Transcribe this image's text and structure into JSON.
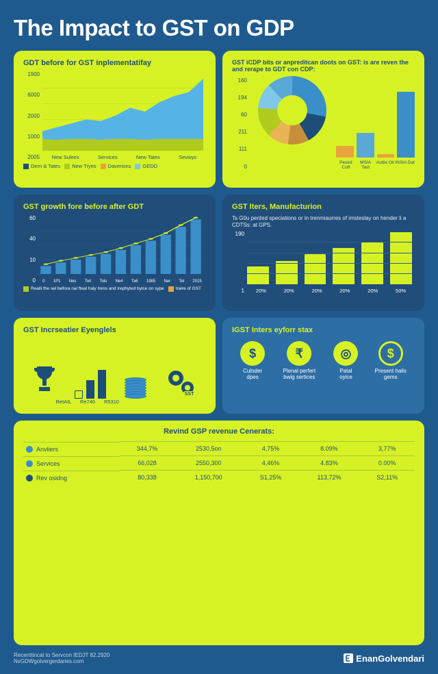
{
  "page": {
    "title": "The Impact to GST on GDP",
    "background_color": "#1f5a8e",
    "title_color": "#ffffff",
    "title_fontsize": 33
  },
  "panel1_area": {
    "title": "GDT before for GST inplementatifay",
    "background_color": "#d7f224",
    "text_color": "#1d4e7a",
    "type": "area",
    "y_ticks": [
      "2005",
      "1000",
      "2000",
      "6000",
      "1900"
    ],
    "y_fontsize": 8,
    "x_labels": [
      "New Sulees",
      "Services",
      "New Tates",
      "Sevioys"
    ],
    "x_fontsize": 7.5,
    "series_top": {
      "color": "#56b3e6",
      "points": [
        0.25,
        0.3,
        0.35,
        0.4,
        0.38,
        0.45,
        0.55,
        0.5,
        0.62,
        0.7,
        0.75,
        0.92
      ]
    },
    "series_bottom": {
      "color": "#b0cb1e",
      "points": [
        0.15,
        0.14,
        0.15,
        0.15,
        0.14,
        0.15,
        0.15,
        0.14,
        0.15,
        0.15,
        0.15,
        0.15
      ]
    },
    "gridline_color": "#b8d41a",
    "legend": [
      {
        "label": "Dern & Tates",
        "color": "#1d4e7a"
      },
      {
        "label": "New Tryes",
        "color": "#b0cb1e"
      },
      {
        "label": "Daverions",
        "color": "#e8a33c"
      },
      {
        "label": "GEDD",
        "color": "#7fc8e8"
      }
    ]
  },
  "panel2_donut": {
    "title": "GST iCDP bits or anpreditcan doots on GST: is are reven the and rerape to GDT con CDP:",
    "background_color": "#d7f224",
    "text_color": "#1d4e7a",
    "type": "donut+bar",
    "donut_slices": [
      {
        "color": "#3a8fc9",
        "frac": 0.28
      },
      {
        "color": "#1d4e7a",
        "frac": 0.14
      },
      {
        "color": "#c78f3a",
        "frac": 0.1
      },
      {
        "color": "#e8b455",
        "frac": 0.1
      },
      {
        "color": "#b0cb1e",
        "frac": 0.14
      },
      {
        "color": "#7fc8e8",
        "frac": 0.12
      },
      {
        "color": "#5aa8d6",
        "frac": 0.12
      }
    ],
    "donut_inner_color": "#d7f224",
    "y_ticks": [
      "0",
      "111",
      "211",
      "60",
      "194",
      "160"
    ],
    "bar_labels": [
      "Pesird Coft",
      "MSIA Tast",
      "Aultie Oil",
      "INSIA Dat"
    ],
    "bar_values": [
      0.15,
      0.32,
      0.04,
      0.85
    ],
    "bar_colors": [
      "#e8a33c",
      "#5aa8d6",
      "#e8a33c",
      "#3a8fc9"
    ]
  },
  "panel3_growth": {
    "title": "GST growth fore before after GDT",
    "background_color": "#204d7a",
    "text_color": "#d7f224",
    "white": "#ffffff",
    "type": "bar+line",
    "y_ticks": [
      "0",
      "10",
      "40",
      "60"
    ],
    "x_labels": [
      "0",
      "1P1",
      "Nes",
      "Torl",
      "Tols",
      "Ne4",
      "Ta6",
      "1985",
      "Ner",
      "Tel",
      "2015"
    ],
    "bar_values": [
      0.14,
      0.2,
      0.25,
      0.3,
      0.35,
      0.42,
      0.5,
      0.58,
      0.68,
      0.82,
      0.95
    ],
    "bar_color": "#3a8fc9",
    "line_color": "#d7f224",
    "line_marker_color": "#d7f224",
    "legend": [
      {
        "label": "Realli the sel befora nal fteal haly Irens and irephyted bylce on sype",
        "color": "#b0cb1e"
      },
      {
        "label": "traire of GST",
        "color": "#e8a33c"
      }
    ],
    "gridline_color": "#2d5f8f"
  },
  "panel4_manuf": {
    "title": "GST Iters, Manufacturion",
    "subtitle": "Ts G0u perited speciations or in trenmiaurres of imsteslay on hender li a CDTSs: at GPS.",
    "background_color": "#204d7a",
    "text_color": "#ffffff",
    "accent": "#d7f224",
    "type": "bar",
    "y_ticks": [
      "1",
      "190"
    ],
    "x_labels": [
      "20%",
      "20%",
      "20%",
      "20%",
      "20%",
      "50%"
    ],
    "bar_values": [
      0.35,
      0.45,
      0.58,
      0.7,
      0.8,
      1.0
    ],
    "bar_color": "#d7f224",
    "gridline_color": "#2d5f8f"
  },
  "panel5_incr": {
    "title": "GST Incrseatier Eyenglels",
    "background_color": "#d7f224",
    "text_color": "#1d4e7a",
    "type": "infographic",
    "trophy_color": "#1d4e7a",
    "bar_labels": [
      "RetAIL",
      "Re746",
      "R5310"
    ],
    "bar_values": [
      0.25,
      0.55,
      0.85
    ],
    "bar_color": "#1d4e7a",
    "coin_color": "#3a8fc9",
    "gear_color": "#1d4e7a",
    "gear_badge": "SST"
  },
  "panel6_icons": {
    "title": "IGST Inters eyforr stax",
    "background_color": "#2d6ea5",
    "text_color": "#d7f224",
    "white": "#ffffff",
    "type": "infographic",
    "icons": [
      {
        "glyph": "$",
        "label1": "Culnder",
        "label2": "dpes",
        "bg": "#d7f224",
        "fg": "#1d4e7a"
      },
      {
        "glyph": "₹",
        "label1": "Plenal perfert bwig sertices",
        "label2": "",
        "bg": "#d7f224",
        "fg": "#1d4e7a"
      },
      {
        "glyph": "◎",
        "label1": "Patal",
        "label2": "oyice",
        "bg": "#d7f224",
        "fg": "#1d4e7a"
      },
      {
        "glyph": "$",
        "label1": "Present halis",
        "label2": "gems",
        "bg": "#2d6ea5",
        "fg": "#d7f224",
        "ring": "#d7f224"
      }
    ]
  },
  "table": {
    "title": "Revind GSP revenue Cenerats:",
    "background_color": "#d7f224",
    "text_color": "#1d4e7a",
    "row_dot_colors": [
      "#3a8fc9",
      "#3a8fc9",
      "#1d4e7a"
    ],
    "rows": [
      [
        "Anvliers",
        "344,7%",
        "2530,5on",
        "4,75%",
        "8.09%",
        "3,77%"
      ],
      [
        "Services",
        "66,028",
        "2550,300",
        "4,46%",
        "4.83%",
        "0.00%"
      ],
      [
        "Rev osidng",
        "80,338",
        "1,150,700",
        "S1,25%",
        "113,72%",
        "S2,11%"
      ]
    ],
    "border_color": "rgba(29,78,122,0.25)"
  },
  "footer": {
    "line1": "Recenttincat to Servcon IEDJT 82.2920",
    "line2": "NvGDWgotvergerdaries.com",
    "brand": "EnanGolvendari",
    "text_color": "#c7d4e0",
    "brand_color": "#ffffff"
  }
}
